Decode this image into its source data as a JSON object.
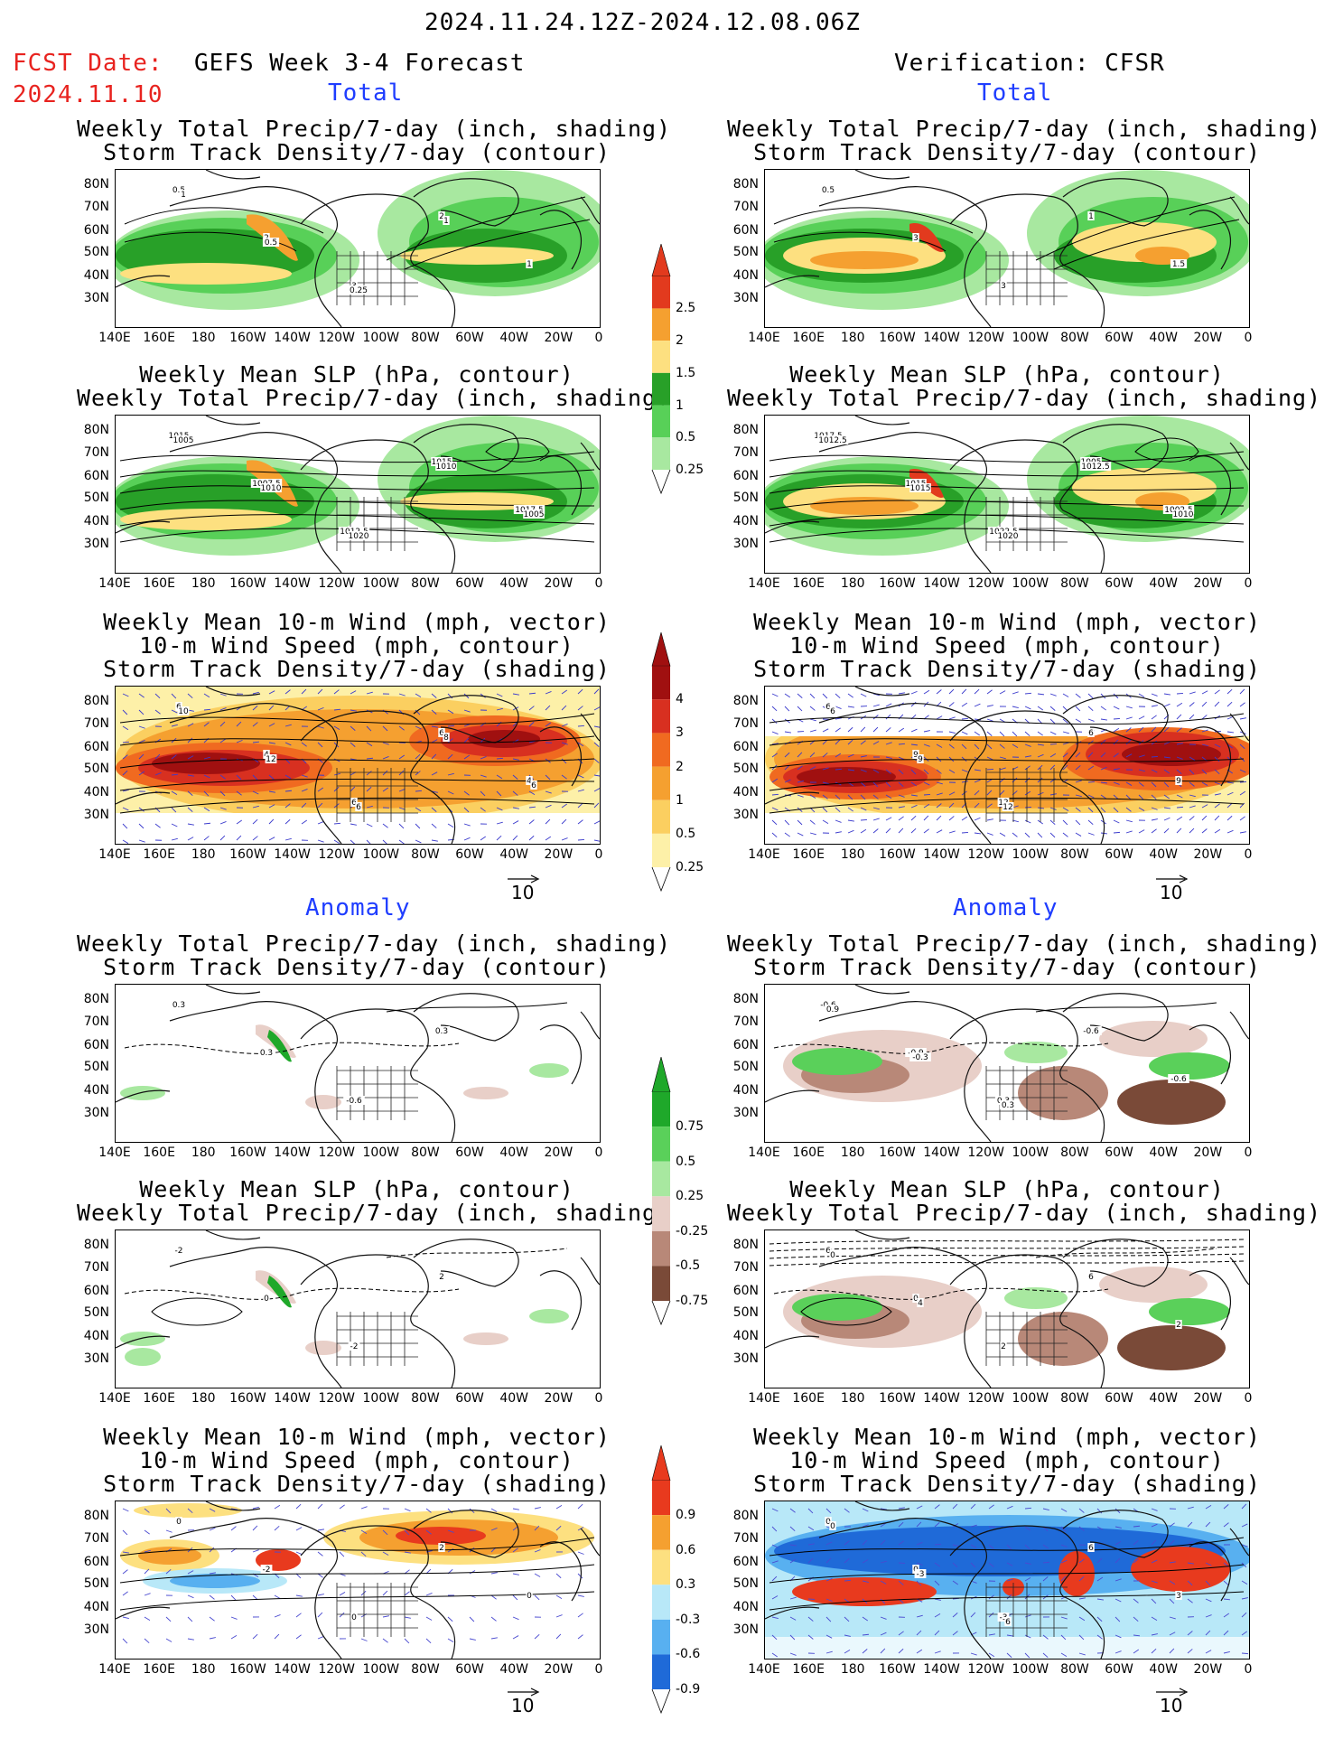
{
  "header": {
    "period": "2024.11.24.12Z-2024.12.08.06Z",
    "fcst_label": "FCST Date:",
    "fcst_date": "2024.11.10",
    "left_title": "GEFS Week 3-4 Forecast",
    "right_title": "Verification: CFSR",
    "total_label": "Total",
    "anomaly_label": "Anomaly"
  },
  "panel_titles": {
    "precip_storm": [
      "Weekly Total Precip/7-day (inch, shading)",
      "Storm Track Density/7-day (contour)"
    ],
    "slp_precip": [
      "Weekly Mean SLP (hPa, contour)",
      "Weekly Total Precip/7-day (inch, shading)"
    ],
    "wind": [
      "Weekly Mean 10-m Wind (mph, vector)",
      "10-m Wind Speed (mph, contour)",
      "Storm Track Density/7-day (shading)"
    ]
  },
  "axes": {
    "lat_labels": [
      "80N",
      "70N",
      "60N",
      "50N",
      "40N",
      "30N"
    ],
    "lon_labels": [
      "140E",
      "160E",
      "180",
      "160W",
      "140W",
      "120W",
      "100W",
      "80W",
      "60W",
      "40W",
      "20W",
      "0"
    ]
  },
  "vector_ref": "10",
  "colorbars": {
    "total_precip": {
      "labels": [
        "2.5",
        "2",
        "1.5",
        "1",
        "0.5",
        "0.25"
      ],
      "colors": [
        "#e23a1e",
        "#f5a030",
        "#fde080",
        "#28a028",
        "#58d058",
        "#a8e8a0"
      ]
    },
    "total_std": {
      "labels": [
        "4",
        "3",
        "2",
        "1",
        "0.5",
        "0.25"
      ],
      "colors": [
        "#a01010",
        "#d83020",
        "#f06a20",
        "#f5a030",
        "#fbcf60",
        "#fdf0a8"
      ]
    },
    "anom_precip": {
      "labels": [
        "0.75",
        "0.5",
        "0.25",
        "-0.25",
        "-0.5",
        "-0.75"
      ],
      "colors": [
        "#1fa82a",
        "#5ad05a",
        "#a8e8a0",
        "#e8cfc8",
        "#b88878",
        "#7a4a38"
      ]
    },
    "anom_std": {
      "labels": [
        "0.9",
        "0.6",
        "0.3",
        "-0.3",
        "-0.6",
        "-0.9"
      ],
      "colors": [
        "#e83a1e",
        "#f5a030",
        "#fde080",
        "#b8e8f8",
        "#58b0f0",
        "#1f6ad8"
      ]
    }
  },
  "contour_labels": {
    "p1l": [
      "0.5",
      "2",
      "3",
      "2",
      "1",
      "1",
      "0.5",
      "0.25",
      "1"
    ],
    "p1r": [
      "0.5",
      "3",
      "3",
      "1",
      "1.5"
    ],
    "p2l": [
      "1015",
      "1007.5",
      "1012.5",
      "1015",
      "1017.5",
      "1005",
      "1010",
      "1020",
      "1010",
      "1005"
    ],
    "p2r": [
      "1017.5",
      "1015",
      "1022.5",
      "1005",
      "1002.5",
      "1012.5",
      "1015",
      "1020",
      "1012.5",
      "1010"
    ],
    "p3l": [
      "6",
      "4",
      "6",
      "6",
      "4",
      "10",
      "12",
      "6",
      "8",
      "6"
    ],
    "p3r": [
      "6",
      "9",
      "12",
      "6",
      "9",
      "6",
      "9",
      "12"
    ],
    "p4l": [
      "0.3",
      "0.3",
      "-0.6",
      "0.3"
    ],
    "p4r": [
      "-0.6",
      "-0.9",
      "0.3",
      "-0.6",
      "-0.6",
      "0.9",
      "-0.3",
      "0.3"
    ],
    "p5l": [
      "-2",
      "0",
      "-2",
      "2"
    ],
    "p5r": [
      "6",
      "0",
      "2",
      "6",
      "2",
      "0",
      "4"
    ],
    "p6l": [
      "0",
      "-2",
      "0",
      "2",
      "0"
    ],
    "p6r": [
      "0",
      "0",
      "-3",
      "6",
      "3",
      "0",
      "-3",
      "6"
    ]
  }
}
